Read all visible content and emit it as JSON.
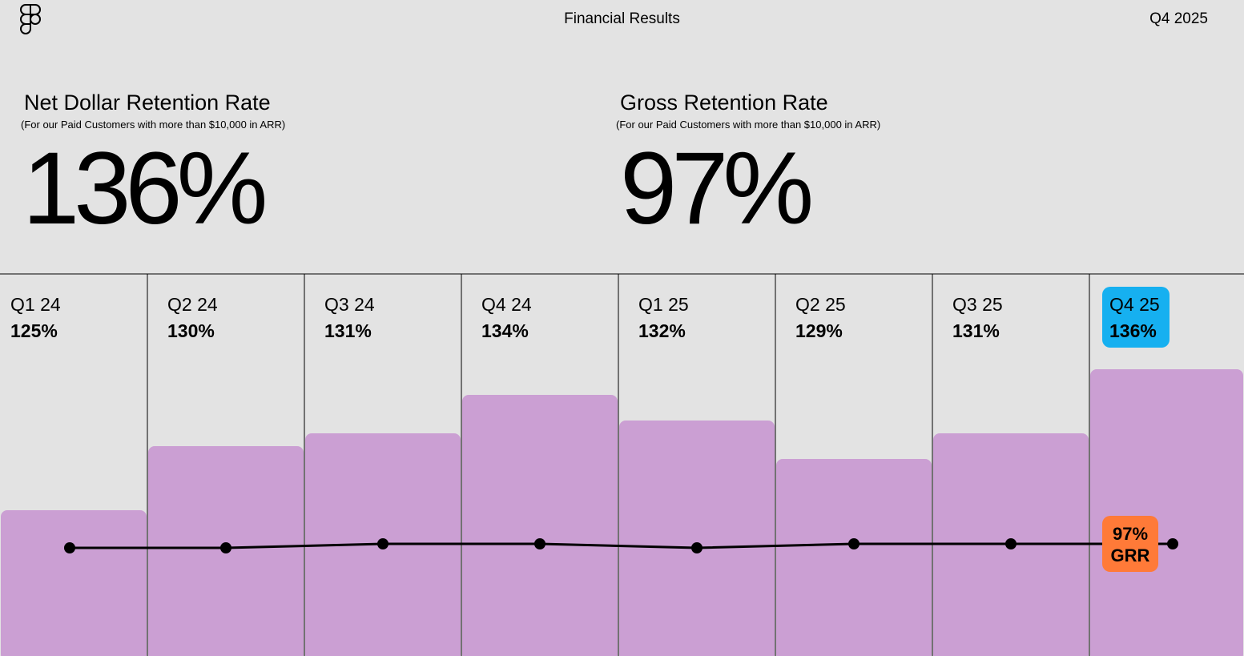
{
  "header": {
    "title": "Financial Results",
    "period": "Q4 2025",
    "logo_icon": "figma-logo-icon"
  },
  "ndr": {
    "title": "Net Dollar Retention Rate",
    "note": "(For our Paid Customers with more than $10,000 in ARR)",
    "value": "136%"
  },
  "grr": {
    "title": "Gross Retention Rate",
    "note": "(For our Paid Customers with more than $10,000 in ARR)",
    "value": "97%"
  },
  "chart_data": {
    "type": "bar",
    "categories": [
      "Q1 24",
      "Q2 24",
      "Q3 24",
      "Q4 24",
      "Q1 25",
      "Q2 25",
      "Q3 25",
      "Q4 25"
    ],
    "series": [
      {
        "values": [
          125,
          130,
          131,
          134,
          132,
          129,
          131,
          136
        ],
        "labels": [
          "125%",
          "130%",
          "131%",
          "134%",
          "132%",
          "129%",
          "131%",
          "136%"
        ],
        "color": "#cb9fd3"
      },
      {
        "type": "line",
        "values": [
          96,
          96,
          97,
          97,
          96,
          97,
          97,
          97
        ],
        "color": "#000000"
      }
    ],
    "highlight": {
      "index": 7,
      "color": "#16b0f0"
    },
    "annotation": {
      "index": 7,
      "lines": [
        "97%",
        "GRR"
      ],
      "color": "#ff7a38"
    },
    "grid": false,
    "legend": "none"
  }
}
